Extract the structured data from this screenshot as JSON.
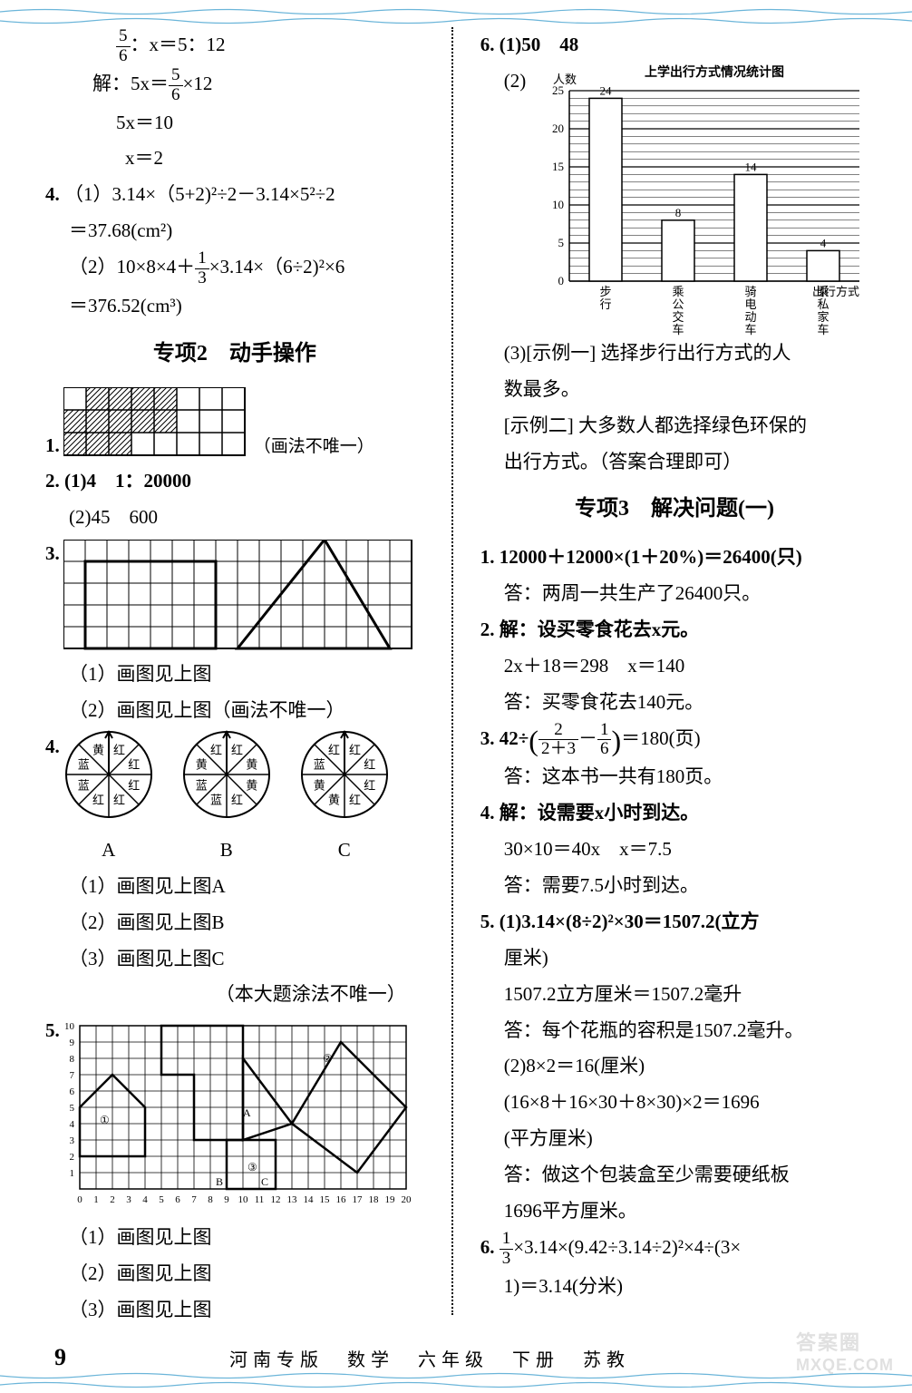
{
  "left": {
    "eq1": "：x＝5：12",
    "eq2": "解：5x＝",
    "eq2b": "×12",
    "eq3": "5x＝10",
    "eq4": "x＝2",
    "q4_1a": "（1）3.14×（5+2)²÷2－3.14×5²÷2",
    "q4_1b": "＝37.68(cm²)",
    "q4_2a": "（2）10×8×4＋",
    "q4_2b": "×3.14×（6÷2)²×6",
    "q4_2c": "＝376.52(cm³)",
    "section2": "专项2　动手操作",
    "q1_note": "（画法不唯一）",
    "q2_1": "2. (1)4　1：20000",
    "q2_2": "(2)45　600",
    "q3": "3.",
    "q3_1": "（1）画图见上图",
    "q3_2": "（2）画图见上图（画法不唯一）",
    "q4": "4.",
    "q4_a": "A",
    "q4_b": "B",
    "q4_c": "C",
    "q4_1": "（1）画图见上图A",
    "q4_2": "（2）画图见上图B",
    "q4_3": "（3）画图见上图C",
    "q4_note": "（本大题涂法不唯一）",
    "q5": "5.",
    "q5_1": "（1）画图见上图",
    "q5_2": "（2）画图见上图",
    "q5_3": "（3）画图见上图",
    "frac56_n": "5",
    "frac56_d": "6",
    "frac13_n": "1",
    "frac13_d": "3",
    "grid_x_labels": [
      "0",
      "1",
      "2",
      "3",
      "4",
      "5",
      "6",
      "7",
      "8",
      "9",
      "10",
      "11",
      "12",
      "13",
      "14",
      "15",
      "16",
      "17",
      "18",
      "19",
      "20"
    ],
    "grid_y_labels": [
      "1",
      "2",
      "3",
      "4",
      "5",
      "6",
      "7",
      "8",
      "9",
      "10"
    ],
    "circles": {
      "A": [
        "红",
        "红",
        "红",
        "红",
        "红",
        "蓝",
        "蓝",
        "黄"
      ],
      "B": [
        "红",
        "黄",
        "黄",
        "红",
        "蓝",
        "蓝",
        "黄",
        "红"
      ],
      "C": [
        "红",
        "红",
        "红",
        "红",
        "黄",
        "黄",
        "蓝",
        "红"
      ]
    }
  },
  "right": {
    "q6_1": "6. (1)50　48",
    "q6_2": "(2)",
    "chart": {
      "title": "上学出行方式情况统计图",
      "ylabel": "人数",
      "xlabel": "出行方式",
      "ymax": 25,
      "ytick": 5,
      "categories": [
        "步行",
        "乘公交车",
        "骑电动车",
        "乘私家车"
      ],
      "values": [
        24,
        8,
        14,
        4
      ],
      "bar_color": "#ffffff",
      "border_color": "#000000",
      "grid_color": "#000000",
      "bg_color": "#ffffff"
    },
    "q6_3a": "(3)[示例一] 选择步行出行方式的人",
    "q6_3b": "数最多。",
    "q6_3c": "[示例二] 大多数人都选择绿色环保的",
    "q6_3d": "出行方式。（答案合理即可）",
    "section3": "专项3　解决问题(一)",
    "s3_q1a": "1. 12000＋12000×(1＋20%)＝26400(只)",
    "s3_q1b": "答：两周一共生产了26400只。",
    "s3_q2a": "2. 解：设买零食花去x元。",
    "s3_q2b": "2x＋18＝298　x＝140",
    "s3_q2c": "答：买零食花去140元。",
    "s3_q3a": "3. 42÷",
    "s3_q3b": "＝180(页)",
    "s3_q3c": "答：这本书一共有180页。",
    "frac_inner1_n": "2",
    "frac_inner1_d": "2＋3",
    "frac_inner2_n": "1",
    "frac_inner2_d": "6",
    "s3_q4a": "4. 解：设需要x小时到达。",
    "s3_q4b": "30×10＝40x　x＝7.5",
    "s3_q4c": "答：需要7.5小时到达。",
    "s3_q5a": "5. (1)3.14×(8÷2)²×30＝1507.2(立方",
    "s3_q5b": "厘米)",
    "s3_q5c": "1507.2立方厘米＝1507.2毫升",
    "s3_q5d": "答：每个花瓶的容积是1507.2毫升。",
    "s3_q5e": "(2)8×2＝16(厘米)",
    "s3_q5f": "(16×8＋16×30＋8×30)×2＝1696",
    "s3_q5g": "(平方厘米)",
    "s3_q5h": "答：做这个包装盒至少需要硬纸板",
    "s3_q5i": "1696平方厘米。",
    "s3_q6a": "6. ",
    "s3_q6a2": "×3.14×(9.42÷3.14÷2)²×4÷(3×",
    "s3_q6b": "1)＝3.14(分米)",
    "frac13b_n": "1",
    "frac13b_d": "3"
  },
  "footer": {
    "page": "9",
    "text": "河南专版　数学　六年级　下册　苏教"
  },
  "watermark": "MXQE.COM"
}
